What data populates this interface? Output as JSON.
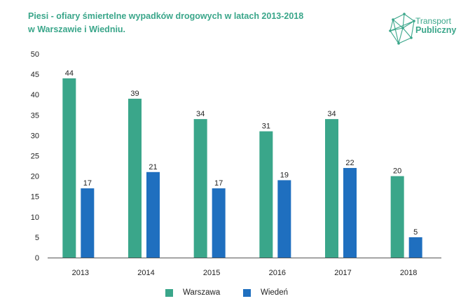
{
  "title": {
    "line1": "Piesi - ofiary śmiertelne wypadków drogowych w latach 2013-2018",
    "line2": "w Warszawie i Wiedniu."
  },
  "logo": {
    "line1": "Transport",
    "line2": "Publiczny",
    "icon": "geometric-network-icon",
    "color": "#3aa68a"
  },
  "colors": {
    "warszawa": "#3aa68a",
    "wieden": "#1f6fbf"
  },
  "chart_data": {
    "type": "bar",
    "title": "Piesi - ofiary śmiertelne wypadków drogowych w latach 2013-2018 w Warszawie i Wiedniu.",
    "categories": [
      "2013",
      "2014",
      "2015",
      "2016",
      "2017",
      "2018"
    ],
    "series": [
      {
        "name": "Warszawa",
        "values": [
          44,
          39,
          34,
          31,
          34,
          20
        ]
      },
      {
        "name": "Wiedeń",
        "values": [
          17,
          21,
          17,
          19,
          22,
          5
        ]
      }
    ],
    "ylim": [
      0,
      50
    ],
    "yticks": [
      0,
      5,
      10,
      15,
      20,
      25,
      30,
      35,
      40,
      45,
      50
    ],
    "xlabel": "",
    "ylabel": "",
    "grid": false,
    "data_labels": true,
    "legend_position": "bottom"
  }
}
